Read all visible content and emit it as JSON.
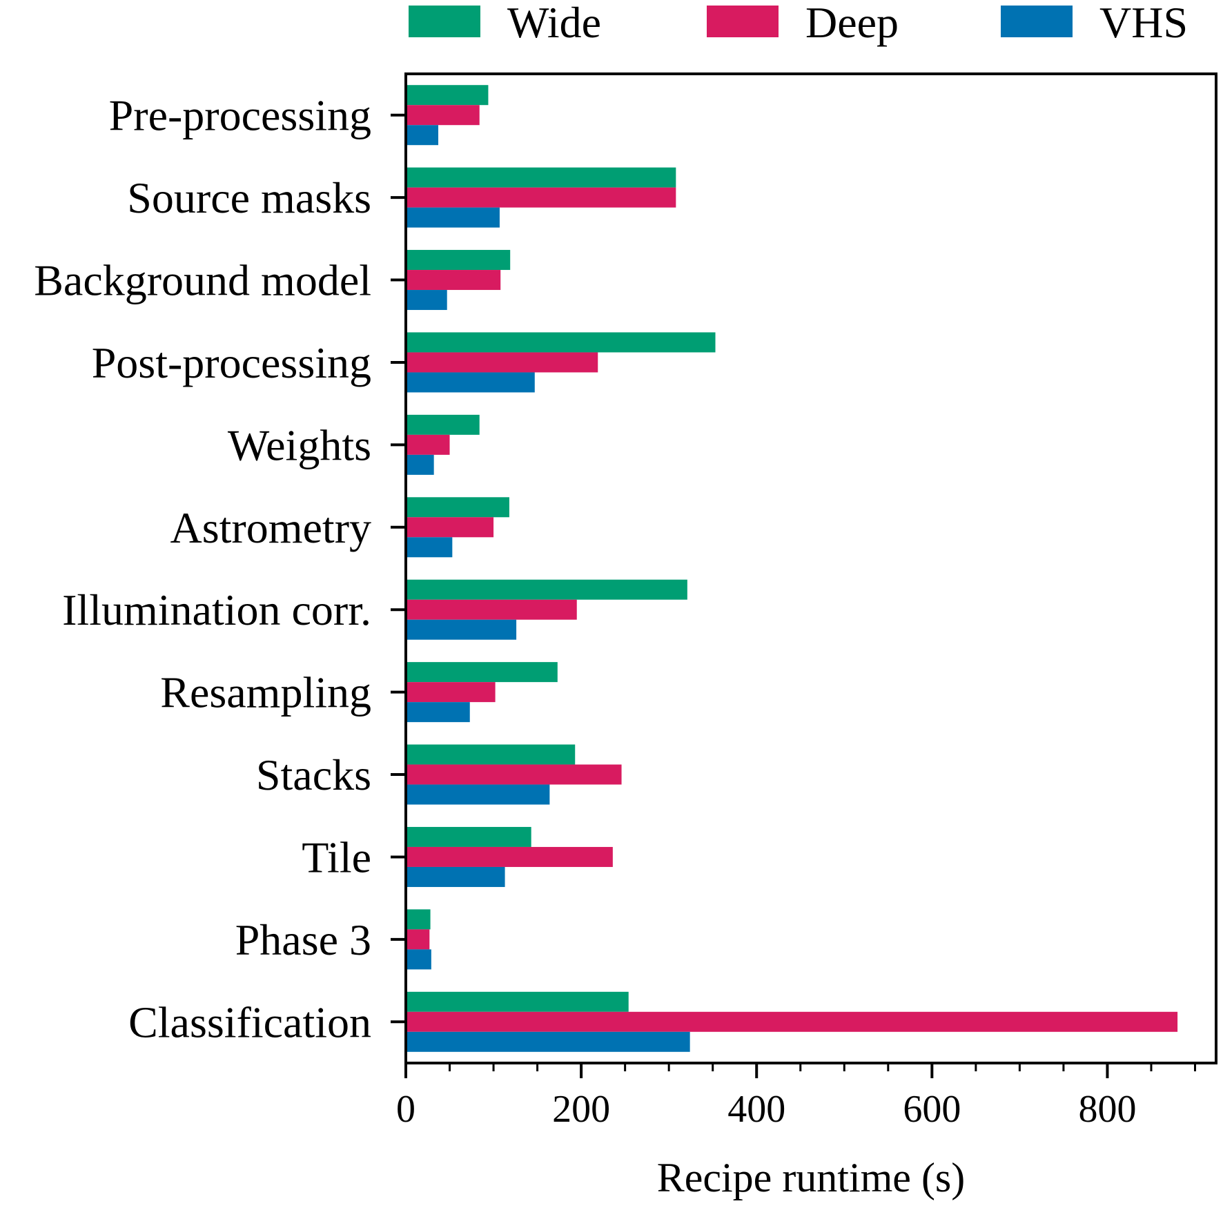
{
  "chart_data": {
    "type": "bar",
    "orientation": "horizontal",
    "categories": [
      "Pre-processing",
      "Source masks",
      "Background model",
      "Post-processing",
      "Weights",
      "Astrometry",
      "Illumination corr.",
      "Resampling",
      "Stacks",
      "Tile",
      "Phase 3",
      "Classification"
    ],
    "series": [
      {
        "name": "Wide",
        "color": "#009e73",
        "values": [
          94,
          308,
          119,
          353,
          84,
          118,
          321,
          173,
          193,
          143,
          28,
          254
        ]
      },
      {
        "name": "Deep",
        "color": "#d81b60",
        "values": [
          84,
          308,
          108,
          219,
          50,
          100,
          195,
          102,
          246,
          236,
          27,
          880
        ]
      },
      {
        "name": "VHS",
        "color": "#0072b2",
        "values": [
          37,
          107,
          47,
          147,
          32,
          53,
          126,
          73,
          164,
          113,
          29,
          324
        ]
      }
    ],
    "xlabel": "Recipe runtime (s)",
    "ylabel": "",
    "xlim": [
      0,
      924
    ],
    "xticks": [
      0,
      200,
      400,
      600,
      800
    ],
    "xtick_labels": [
      "0",
      "200",
      "400",
      "600",
      "800"
    ],
    "minor_tick_step": 50,
    "grid": false,
    "legend": {
      "placement": "top-outside",
      "entries": [
        "Wide",
        "Deep",
        "VHS"
      ]
    }
  }
}
